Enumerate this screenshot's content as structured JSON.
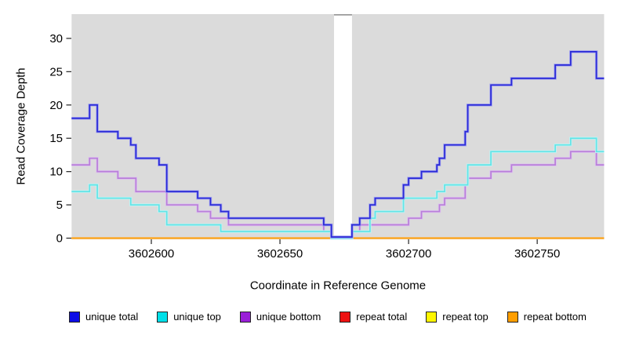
{
  "chart_data": {
    "type": "line",
    "subtype": "step-coverage",
    "title": "",
    "xlabel": "Coordinate in Reference Genome",
    "ylabel": "Read Coverage Depth",
    "xlim": [
      3602569,
      3602776
    ],
    "ylim": [
      0,
      33.6
    ],
    "x_ticks": [
      3602600,
      3602650,
      3602700,
      3602750
    ],
    "y_ticks": [
      0,
      5,
      10,
      15,
      20,
      25,
      30
    ],
    "grid": false,
    "legend_position": "bottom",
    "gap_region": {
      "from": 3602671,
      "to": 3602678
    },
    "colors": {
      "panel": "#dbdbdb",
      "page": "#ffffff",
      "tick": "#333333",
      "gap_top_line": "#9a9a9a"
    },
    "series": [
      {
        "name": "unique total",
        "color": "#2a2ad6",
        "halo": "#9e9ef0",
        "legend_color": "#0d0de6",
        "steps": [
          [
            3602569,
            18
          ],
          [
            3602576,
            20
          ],
          [
            3602579,
            16
          ],
          [
            3602587,
            15
          ],
          [
            3602592,
            14
          ],
          [
            3602594,
            12
          ],
          [
            3602603,
            11
          ],
          [
            3602606,
            7
          ],
          [
            3602618,
            6
          ],
          [
            3602623,
            5
          ],
          [
            3602627,
            4
          ],
          [
            3602630,
            3
          ],
          [
            3602667,
            2
          ],
          [
            3602670,
            0
          ],
          [
            3602678,
            2
          ],
          [
            3602681,
            3
          ],
          [
            3602685,
            5
          ],
          [
            3602687,
            6
          ],
          [
            3602698,
            8
          ],
          [
            3602700,
            9
          ],
          [
            3602705,
            10
          ],
          [
            3602711,
            11
          ],
          [
            3602712,
            12
          ],
          [
            3602714,
            14
          ],
          [
            3602722,
            16
          ],
          [
            3602723,
            20
          ],
          [
            3602732,
            23
          ],
          [
            3602740,
            24
          ],
          [
            3602757,
            26
          ],
          [
            3602763,
            28
          ],
          [
            3602773,
            24
          ]
        ]
      },
      {
        "name": "unique top",
        "color": "#63e3e6",
        "halo": "#c0f4f4",
        "legend_color": "#00dfe8",
        "steps": [
          [
            3602569,
            7
          ],
          [
            3602576,
            8
          ],
          [
            3602579,
            6
          ],
          [
            3602592,
            5
          ],
          [
            3602603,
            4
          ],
          [
            3602606,
            2
          ],
          [
            3602627,
            1
          ],
          [
            3602670,
            0
          ],
          [
            3602678,
            1
          ],
          [
            3602685,
            3
          ],
          [
            3602687,
            4
          ],
          [
            3602698,
            6
          ],
          [
            3602711,
            7
          ],
          [
            3602714,
            8
          ],
          [
            3602723,
            11
          ],
          [
            3602732,
            13
          ],
          [
            3602757,
            14
          ],
          [
            3602763,
            15
          ],
          [
            3602773,
            13
          ]
        ]
      },
      {
        "name": "unique bottom",
        "color": "#b97fd9",
        "halo": "#ddc2ef",
        "legend_color": "#9a1fd8",
        "steps": [
          [
            3602569,
            11
          ],
          [
            3602576,
            12
          ],
          [
            3602579,
            10
          ],
          [
            3602587,
            9
          ],
          [
            3602594,
            7
          ],
          [
            3602606,
            5
          ],
          [
            3602618,
            4
          ],
          [
            3602623,
            3
          ],
          [
            3602630,
            2
          ],
          [
            3602667,
            1
          ],
          [
            3602670,
            0
          ],
          [
            3602678,
            1
          ],
          [
            3602681,
            2
          ],
          [
            3602700,
            3
          ],
          [
            3602705,
            4
          ],
          [
            3602712,
            5
          ],
          [
            3602714,
            6
          ],
          [
            3602722,
            8
          ],
          [
            3602723,
            9
          ],
          [
            3602732,
            10
          ],
          [
            3602740,
            11
          ],
          [
            3602757,
            12
          ],
          [
            3602763,
            13
          ],
          [
            3602773,
            11
          ]
        ]
      },
      {
        "name": "repeat total",
        "color": "#e32020",
        "legend_color": "#ee1111",
        "steps": [
          [
            3602569,
            0
          ]
        ]
      },
      {
        "name": "repeat top",
        "color": "#ffff2e",
        "legend_color": "#fff600",
        "steps": [
          [
            3602569,
            0
          ]
        ]
      },
      {
        "name": "repeat bottom",
        "color": "#ffa317",
        "legend_color": "#ff9e00",
        "line_width": 2.2,
        "steps": [
          [
            3602569,
            0
          ]
        ]
      }
    ]
  }
}
